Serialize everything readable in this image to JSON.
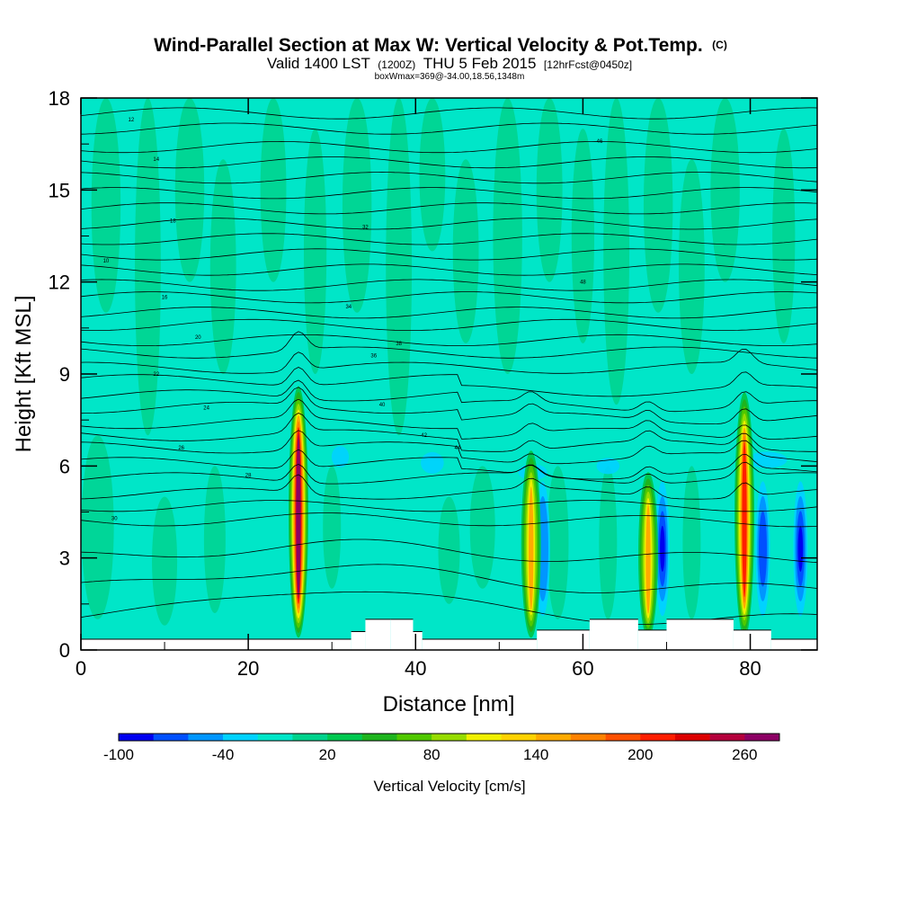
{
  "chart_data": {
    "type": "heatmap",
    "title": "Wind-Parallel Section at Max W: Vertical Velocity & Pot.Temp.",
    "title_mark": "(C)",
    "subtitle": {
      "valid": "Valid 1400 LST",
      "utc": "(1200Z)",
      "date": "THU 5 Feb 2015",
      "fcst": "[12hrFcst@0450z]"
    },
    "boxline": "boxWmax=369@-34.00,18.56,1348m",
    "xlabel": "Distance [nm]",
    "ylabel": "Height [Kft MSL]",
    "xlim": [
      0,
      88
    ],
    "ylim": [
      0,
      18
    ],
    "x_ticks": [
      "0",
      "20",
      "40",
      "60",
      "80"
    ],
    "y_ticks": [
      "0",
      "3",
      "6",
      "9",
      "12",
      "15",
      "18"
    ],
    "colorbar": {
      "label": "Vertical Velocity [cm/s]",
      "tick_labels": [
        "-100",
        "-40",
        "20",
        "80",
        "140",
        "200",
        "260"
      ],
      "colors": [
        "#0000f0",
        "#0050ff",
        "#0096ff",
        "#00d2ff",
        "#00e6c8",
        "#00d28c",
        "#00c850",
        "#1eb41e",
        "#50c800",
        "#96dc00",
        "#f0f000",
        "#ffd200",
        "#ffaa00",
        "#ff8200",
        "#ff5000",
        "#ff1e00",
        "#dc0000",
        "#b4003c",
        "#8c0064"
      ]
    },
    "updrafts": [
      {
        "x": 26.0,
        "peak_w": 260,
        "top_kft": 8.6
      },
      {
        "x": 53.8,
        "peak_w": 140,
        "top_kft": 6.5
      },
      {
        "x": 67.8,
        "peak_w": 140,
        "top_kft": 5.8
      },
      {
        "x": 79.3,
        "peak_w": 200,
        "top_kft": 8.4
      }
    ],
    "downdrafts": [
      {
        "x": 55.2,
        "min_w": -60
      },
      {
        "x": 69.5,
        "min_w": -100
      },
      {
        "x": 81.5,
        "min_w": -80
      },
      {
        "x": 86.0,
        "min_w": -100
      }
    ],
    "isentropes_kft": [
      1.0,
      2.0,
      3.0,
      4.2,
      4.7,
      5.1,
      5.6,
      6.1,
      6.6,
      7.0,
      7.4,
      7.9,
      8.3,
      8.8,
      9.2,
      9.7,
      10.1,
      10.6,
      11.0,
      11.5,
      11.9,
      12.4,
      12.9,
      13.4,
      13.9,
      14.4,
      14.9,
      15.4,
      15.9,
      16.4,
      17.0,
      17.5
    ],
    "isentrope_labels": [
      "10",
      "12",
      "14",
      "16",
      "18",
      "20",
      "22",
      "24",
      "26",
      "28",
      "30",
      "32",
      "34",
      "36",
      "38",
      "40",
      "42",
      "44",
      "46",
      "48"
    ],
    "terrain": [
      {
        "x0": 0,
        "x1": 32.3,
        "h_kft": 0.35
      },
      {
        "x0": 32.3,
        "x1": 34.0,
        "h_kft": 0.6
      },
      {
        "x0": 34.0,
        "x1": 37.0,
        "h_kft": 1.0
      },
      {
        "x0": 37.0,
        "x1": 39.7,
        "h_kft": 1.0
      },
      {
        "x0": 39.7,
        "x1": 40.8,
        "h_kft": 0.6
      },
      {
        "x0": 40.8,
        "x1": 54.5,
        "h_kft": 0.35
      },
      {
        "x0": 54.5,
        "x1": 60.8,
        "h_kft": 0.65
      },
      {
        "x0": 60.8,
        "x1": 66.6,
        "h_kft": 1.0
      },
      {
        "x0": 66.6,
        "x1": 70.0,
        "h_kft": 0.65
      },
      {
        "x0": 70.0,
        "x1": 78.0,
        "h_kft": 1.0
      },
      {
        "x0": 78.0,
        "x1": 82.5,
        "h_kft": 0.65
      },
      {
        "x0": 82.5,
        "x1": 88,
        "h_kft": 0.35
      }
    ]
  }
}
